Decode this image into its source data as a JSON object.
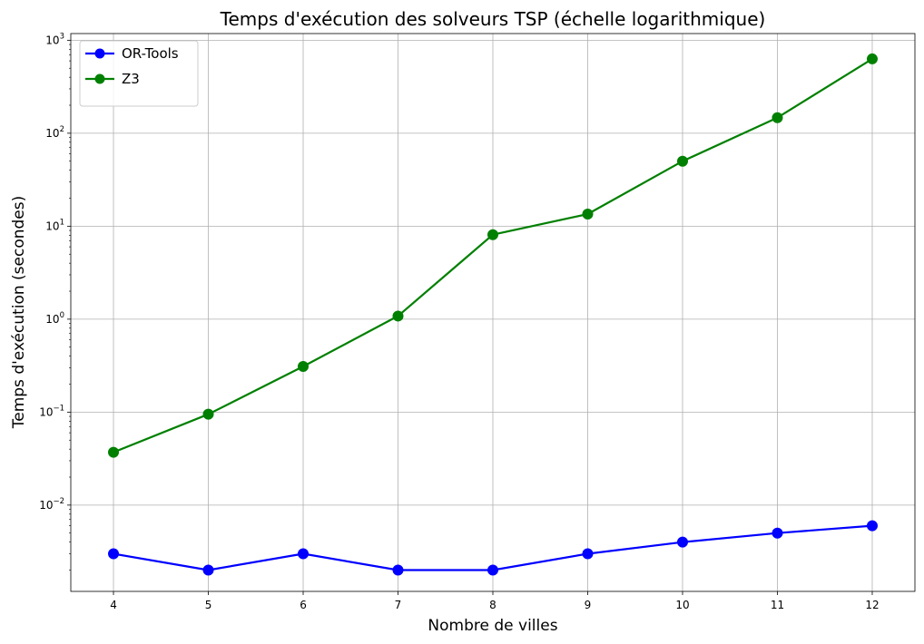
{
  "chart_data": {
    "type": "line",
    "title": "Temps d'exécution des solveurs TSP (échelle logarithmique)",
    "xlabel": "Nombre de villes",
    "ylabel": "Temps d'exécution (secondes)",
    "x": [
      4,
      5,
      6,
      7,
      8,
      9,
      10,
      11,
      12
    ],
    "xlim": [
      3.55,
      12.45
    ],
    "yscale": "log",
    "ylim": [
      0.00118,
      1180
    ],
    "yticks": [
      {
        "value": 0.01,
        "base": "10",
        "exp": "−2"
      },
      {
        "value": 0.1,
        "base": "10",
        "exp": "−1"
      },
      {
        "value": 1,
        "base": "10",
        "exp": "0"
      },
      {
        "value": 10,
        "base": "10",
        "exp": "1"
      },
      {
        "value": 100,
        "base": "10",
        "exp": "2"
      },
      {
        "value": 1000,
        "base": "10",
        "exp": "3"
      }
    ],
    "grid": true,
    "legend_position": "top-left",
    "series": [
      {
        "name": "OR-Tools",
        "color": "#0000ff",
        "marker": "circle",
        "values": [
          0.003,
          0.002,
          0.003,
          0.002,
          0.002,
          0.003,
          0.004,
          0.005,
          0.006
        ]
      },
      {
        "name": "Z3",
        "color": "#008000",
        "marker": "circle",
        "values": [
          0.037,
          0.095,
          0.31,
          1.08,
          8.1,
          13.5,
          50,
          147,
          630
        ]
      }
    ]
  }
}
